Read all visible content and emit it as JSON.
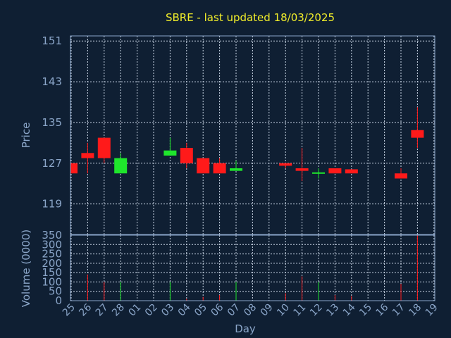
{
  "chart_data": {
    "type": "candlestick",
    "title": "SBRE - last updated 18/03/2025",
    "xlabel": "Day",
    "ylabel": "Price",
    "volume_label": "Volume (0000)",
    "price_ylim": [
      113,
      152
    ],
    "price_ticks": [
      "151",
      "143",
      "135",
      "127",
      "119"
    ],
    "volume_ylim": [
      0,
      350
    ],
    "volume_ticks": [
      "350",
      "300",
      "250",
      "200",
      "150",
      "100",
      "50",
      "0"
    ],
    "x_ticks": [
      "25",
      "26",
      "27",
      "28",
      "01",
      "02",
      "03",
      "04",
      "05",
      "06",
      "07",
      "08",
      "09",
      "10",
      "11",
      "12",
      "13",
      "14",
      "15",
      "16",
      "17",
      "18",
      "19"
    ],
    "grid": true,
    "colors": {
      "up": "#1fe62c",
      "down": "#ff1a1a",
      "grid": "#c8d4e4",
      "frame": "#8aa5c8",
      "title": "#f2ee2a",
      "background": "#0f1f33"
    },
    "candles": [
      {
        "x": 0,
        "open": 127.0,
        "high": 127.0,
        "low": 125.0,
        "close": 125.0,
        "volume": 0
      },
      {
        "x": 1,
        "open": 129.0,
        "high": 131.0,
        "low": 125.0,
        "close": 128.0,
        "volume": 140
      },
      {
        "x": 2,
        "open": 132.0,
        "high": 132.0,
        "low": 127.0,
        "close": 128.0,
        "volume": 100
      },
      {
        "x": 3,
        "open": 125.0,
        "high": 129.0,
        "low": 125.0,
        "close": 128.0,
        "volume": 100
      },
      {
        "x": 6,
        "open": 128.5,
        "high": 132.0,
        "low": 128.5,
        "close": 129.5,
        "volume": 100
      },
      {
        "x": 7,
        "open": 130.0,
        "high": 131.0,
        "low": 126.0,
        "close": 127.0,
        "volume": 10
      },
      {
        "x": 8,
        "open": 128.0,
        "high": 128.0,
        "low": 125.0,
        "close": 125.0,
        "volume": 20
      },
      {
        "x": 9,
        "open": 127.0,
        "high": 128.0,
        "low": 125.0,
        "close": 125.0,
        "volume": 30
      },
      {
        "x": 10,
        "open": 125.5,
        "high": 127.5,
        "low": 125.5,
        "close": 126.0,
        "volume": 100
      },
      {
        "x": 13,
        "open": 127.0,
        "high": 127.0,
        "low": 126.0,
        "close": 126.5,
        "volume": 40
      },
      {
        "x": 14,
        "open": 126.0,
        "high": 130.0,
        "low": 123.5,
        "close": 125.5,
        "volume": 130
      },
      {
        "x": 15,
        "open": 125.0,
        "high": 126.0,
        "low": 124.0,
        "close": 125.2,
        "volume": 100
      },
      {
        "x": 16,
        "open": 126.0,
        "high": 126.0,
        "low": 125.0,
        "close": 125.0,
        "volume": 30
      },
      {
        "x": 17,
        "open": 125.8,
        "high": 125.8,
        "low": 125.0,
        "close": 125.0,
        "volume": 25
      },
      {
        "x": 20,
        "open": 125.0,
        "high": 126.0,
        "low": 124.0,
        "close": 124.0,
        "volume": 90
      },
      {
        "x": 21,
        "open": 133.5,
        "high": 138.0,
        "low": 130.0,
        "close": 132.0,
        "volume": 350
      }
    ]
  }
}
